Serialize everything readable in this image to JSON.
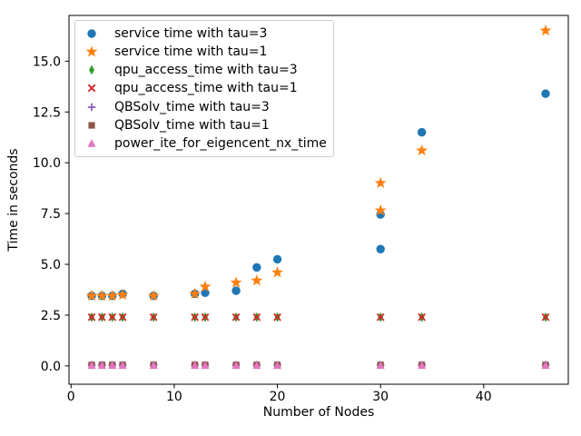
{
  "figure": {
    "xlabel": "Number of Nodes",
    "ylabel": "Time in seconds",
    "background": "#ffffff",
    "spine_color": "#000000"
  },
  "legend": {
    "position": "upper left",
    "entries": [
      {
        "label": "service time with tau=3",
        "marker": "circle",
        "color": "#1f77b4"
      },
      {
        "label": "service time with tau=1",
        "marker": "star",
        "color": "#ff7f0e"
      },
      {
        "label": "qpu_access_time with tau=3",
        "marker": "thin_diamond",
        "color": "#2ca02c"
      },
      {
        "label": "qpu_access_time with tau=1",
        "marker": "x",
        "color": "#d62728"
      },
      {
        "label": "QBSolv_time with tau=3",
        "marker": "plus",
        "color": "#9467bd"
      },
      {
        "label": "QBSolv_time with tau=1",
        "marker": "square",
        "color": "#8c564b"
      },
      {
        "label": "power_ite_for_eigencent_nx_time",
        "marker": "triangle_up",
        "color": "#e377c2"
      }
    ]
  },
  "chart_data": {
    "type": "scatter",
    "title": "",
    "xlabel": "Number of Nodes",
    "ylabel": "Time in seconds",
    "xlim": [
      -0.2,
      48.2
    ],
    "ylim": [
      -0.9,
      17.25
    ],
    "xticks": [
      0,
      10,
      20,
      30,
      40
    ],
    "xtick_labels": [
      "0",
      "10",
      "20",
      "30",
      "40"
    ],
    "yticks": [
      0.0,
      2.5,
      5.0,
      7.5,
      10.0,
      12.5,
      15.0
    ],
    "ytick_labels": [
      "0.0",
      "2.5",
      "5.0",
      "7.5",
      "10.0",
      "12.5",
      "15.0"
    ],
    "grid": false,
    "legend_position": "upper left",
    "node_counts": [
      2,
      3,
      4,
      5,
      8,
      12,
      13,
      16,
      18,
      20,
      30,
      34,
      46
    ],
    "series": [
      {
        "name": "service time with tau=3",
        "marker": "circle",
        "color": "#1f77b4",
        "points": [
          [
            2,
            3.45
          ],
          [
            3,
            3.45
          ],
          [
            4,
            3.45
          ],
          [
            5,
            3.55
          ],
          [
            8,
            3.45
          ],
          [
            12,
            3.55
          ],
          [
            13,
            3.6
          ],
          [
            16,
            3.7
          ],
          [
            18,
            4.85
          ],
          [
            20,
            5.25
          ],
          [
            30,
            5.75
          ],
          [
            30,
            7.45
          ],
          [
            34,
            11.5
          ],
          [
            46,
            13.4
          ]
        ]
      },
      {
        "name": "service time with tau=1",
        "marker": "star",
        "color": "#ff7f0e",
        "points": [
          [
            2,
            3.45
          ],
          [
            3,
            3.45
          ],
          [
            4,
            3.45
          ],
          [
            5,
            3.5
          ],
          [
            8,
            3.45
          ],
          [
            12,
            3.55
          ],
          [
            13,
            3.9
          ],
          [
            16,
            4.1
          ],
          [
            18,
            4.2
          ],
          [
            20,
            4.6
          ],
          [
            30,
            7.65
          ],
          [
            30,
            9.0
          ],
          [
            34,
            10.6
          ],
          [
            46,
            16.5
          ]
        ]
      },
      {
        "name": "qpu_access_time with tau=3",
        "marker": "thin_diamond",
        "color": "#2ca02c",
        "points": [
          [
            2,
            2.4
          ],
          [
            3,
            2.4
          ],
          [
            4,
            2.4
          ],
          [
            5,
            2.4
          ],
          [
            8,
            2.4
          ],
          [
            12,
            2.4
          ],
          [
            13,
            2.4
          ],
          [
            16,
            2.4
          ],
          [
            18,
            2.4
          ],
          [
            20,
            2.4
          ],
          [
            30,
            2.4
          ],
          [
            34,
            2.4
          ],
          [
            46,
            2.4
          ]
        ]
      },
      {
        "name": "qpu_access_time with tau=1",
        "marker": "x",
        "color": "#d62728",
        "points": [
          [
            2,
            2.4
          ],
          [
            3,
            2.4
          ],
          [
            4,
            2.4
          ],
          [
            5,
            2.4
          ],
          [
            8,
            2.4
          ],
          [
            12,
            2.4
          ],
          [
            13,
            2.4
          ],
          [
            16,
            2.4
          ],
          [
            18,
            2.4
          ],
          [
            20,
            2.4
          ],
          [
            30,
            2.4
          ],
          [
            34,
            2.4
          ],
          [
            46,
            2.4
          ]
        ]
      },
      {
        "name": "QBSolv_time with tau=3",
        "marker": "plus",
        "color": "#9467bd",
        "points": [
          [
            2,
            0.05
          ],
          [
            3,
            0.05
          ],
          [
            4,
            0.05
          ],
          [
            5,
            0.05
          ],
          [
            8,
            0.05
          ],
          [
            12,
            0.05
          ],
          [
            13,
            0.05
          ],
          [
            16,
            0.05
          ],
          [
            18,
            0.05
          ],
          [
            20,
            0.05
          ],
          [
            30,
            0.05
          ],
          [
            34,
            0.05
          ],
          [
            46,
            0.05
          ]
        ]
      },
      {
        "name": "QBSolv_time with tau=1",
        "marker": "square",
        "color": "#8c564b",
        "points": [
          [
            2,
            0.05
          ],
          [
            3,
            0.05
          ],
          [
            4,
            0.05
          ],
          [
            5,
            0.05
          ],
          [
            8,
            0.05
          ],
          [
            12,
            0.05
          ],
          [
            13,
            0.05
          ],
          [
            16,
            0.05
          ],
          [
            18,
            0.05
          ],
          [
            20,
            0.05
          ],
          [
            30,
            0.05
          ],
          [
            34,
            0.05
          ],
          [
            46,
            0.05
          ]
        ]
      },
      {
        "name": "power_ite_for_eigencent_nx_time",
        "marker": "triangle_up",
        "color": "#e377c2",
        "points": [
          [
            2,
            0.02
          ],
          [
            3,
            0.02
          ],
          [
            4,
            0.02
          ],
          [
            5,
            0.02
          ],
          [
            8,
            0.02
          ],
          [
            12,
            0.02
          ],
          [
            13,
            0.02
          ],
          [
            16,
            0.02
          ],
          [
            18,
            0.02
          ],
          [
            20,
            0.02
          ],
          [
            30,
            0.02
          ],
          [
            34,
            0.02
          ],
          [
            46,
            0.02
          ]
        ]
      }
    ]
  }
}
